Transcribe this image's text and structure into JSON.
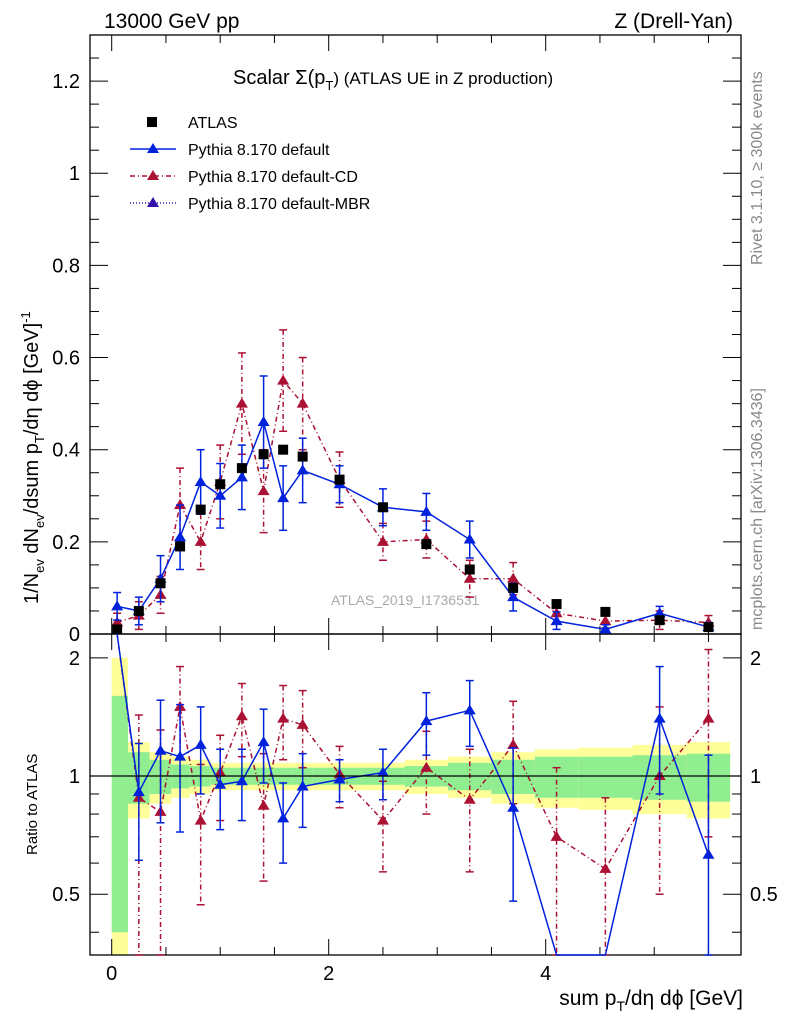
{
  "header": {
    "left": "13000 GeV pp",
    "right": "Z (Drell-Yan)"
  },
  "side_labels": {
    "rivet": "Rivet 3.1.10, ≥ 300k events",
    "mcplots": "mcplots.cern.ch [arXiv:1306.3436]"
  },
  "watermark": "ATLAS_2019_I1736531",
  "colors": {
    "atlas": "#000000",
    "pythia": "#0022dd",
    "cd": "#aa1133",
    "mbr": "#3311aa",
    "band_inner": "#90ee90",
    "band_outer": "#ffff99"
  },
  "chart_data": {
    "type": "scatter",
    "title": "Scalar Σ(pT) (ATLAS UE in Z production)",
    "title_main": "Scalar Σ(p",
    "title_sub": "T",
    "title_rest": ") (ATLAS UE in Z production)",
    "xlabel": "sum pT/dη dφ [GeV]",
    "ylabel": "1/Nev dNev/dsum pT/dη dφ [GeV]^-1",
    "ratio_ylabel": "Ratio to ATLAS",
    "xlim": [
      -0.2,
      5.8
    ],
    "ylim_main": [
      0,
      1.3
    ],
    "ylim_ratio": [
      0.35,
      2.3
    ],
    "x_ticks": [
      "0",
      "2",
      "4"
    ],
    "y_ticks_main": [
      "0",
      "0.2",
      "0.4",
      "0.6",
      "0.8",
      "1",
      "1.2"
    ],
    "y_ticks_ratio": [
      "0.5",
      "1",
      "2"
    ],
    "legend": [
      "ATLAS",
      "Pythia 8.170 default",
      "Pythia 8.170 default-CD",
      "Pythia 8.170 default-MBR"
    ],
    "x": [
      0.05,
      0.25,
      0.45,
      0.63,
      0.82,
      1.0,
      1.2,
      1.4,
      1.58,
      1.76,
      2.1,
      2.5,
      2.9,
      3.3,
      3.7,
      4.1,
      4.55,
      5.05,
      5.5
    ],
    "series": [
      {
        "name": "ATLAS",
        "values": [
          0.01,
          0.05,
          0.11,
          0.19,
          0.27,
          0.325,
          0.36,
          0.39,
          0.4,
          0.385,
          0.335,
          0.275,
          0.195,
          0.14,
          0.1,
          0.065,
          0.048,
          0.03,
          0.015
        ]
      },
      {
        "name": "Pythia 8.170 default",
        "values": [
          0.06,
          0.05,
          0.12,
          0.21,
          0.33,
          0.3,
          0.34,
          0.46,
          0.295,
          0.355,
          0.325,
          0.275,
          0.265,
          0.205,
          0.08,
          0.028,
          0.01,
          0.045,
          0.015
        ],
        "errors": [
          0.03,
          0.03,
          0.05,
          0.07,
          0.07,
          0.07,
          0.07,
          0.1,
          0.07,
          0.07,
          0.04,
          0.04,
          0.04,
          0.04,
          0.03,
          0.02,
          0.01,
          0.015,
          0.01
        ]
      },
      {
        "name": "Pythia 8.170 default-CD",
        "values": [
          0.025,
          0.04,
          0.085,
          0.28,
          0.2,
          0.33,
          0.5,
          0.31,
          0.55,
          0.5,
          0.335,
          0.2,
          0.205,
          0.12,
          0.12,
          0.045,
          0.028,
          0.03,
          0.025
        ],
        "errors": [
          0.02,
          0.03,
          0.04,
          0.08,
          0.06,
          0.08,
          0.11,
          0.09,
          0.11,
          0.1,
          0.06,
          0.04,
          0.04,
          0.04,
          0.035,
          0.02,
          0.015,
          0.02,
          0.015
        ]
      },
      {
        "name": "Pythia 8.170 default-MBR",
        "values": []
      }
    ],
    "ratio_pythia": [
      3.0,
      0.91,
      1.16,
      1.12,
      1.2,
      0.95,
      0.97,
      1.22,
      0.78,
      0.94,
      0.98,
      1.02,
      1.38,
      1.47,
      0.83,
      0.3,
      0.3,
      1.4,
      0.63
    ],
    "ratio_pythia_err": [
      0,
      0.3,
      0.4,
      0.4,
      0.3,
      0.22,
      0.2,
      0.26,
      0.18,
      0.2,
      0.12,
      0.15,
      0.25,
      0.28,
      0.35,
      0,
      0,
      0.5,
      0.5
    ],
    "ratio_cd": [
      3.0,
      0.88,
      0.81,
      1.5,
      0.77,
      1.02,
      1.42,
      0.84,
      1.4,
      1.35,
      1.01,
      0.77,
      1.05,
      0.87,
      1.2,
      0.7,
      0.58,
      1.0,
      1.4
    ],
    "ratio_cd_err": [
      0,
      0.55,
      0.5,
      0.4,
      0.3,
      0.25,
      0.3,
      0.3,
      0.3,
      0.3,
      0.18,
      0.2,
      0.25,
      0.3,
      0.35,
      0.35,
      0.3,
      0.5,
      0.7
    ],
    "band_edges": [
      0.0,
      0.15,
      0.35,
      0.55,
      0.72,
      0.91,
      1.1,
      1.3,
      1.5,
      1.67,
      1.85,
      2.3,
      2.7,
      3.1,
      3.5,
      3.9,
      4.3,
      4.8,
      5.3,
      5.7
    ],
    "band_inner": [
      0.6,
      0.15,
      0.1,
      0.07,
      0.06,
      0.05,
      0.05,
      0.05,
      0.05,
      0.05,
      0.05,
      0.05,
      0.06,
      0.08,
      0.1,
      0.12,
      0.12,
      0.13,
      0.14
    ],
    "band_outer": [
      1.0,
      0.22,
      0.15,
      0.12,
      0.1,
      0.08,
      0.08,
      0.08,
      0.08,
      0.08,
      0.08,
      0.08,
      0.1,
      0.12,
      0.15,
      0.17,
      0.18,
      0.2,
      0.22
    ]
  }
}
